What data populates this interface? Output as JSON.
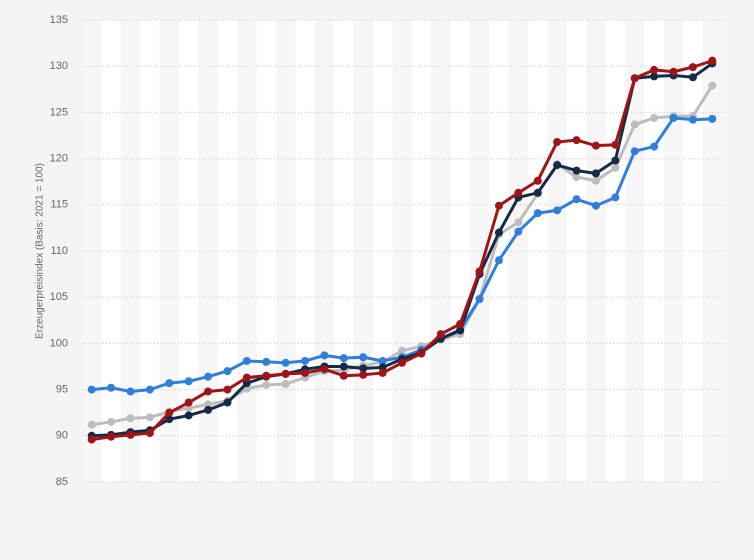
{
  "chart_data": {
    "type": "line",
    "y_label": "Erzeugerpreisindex (Basis: 2021 = 100)",
    "categories": [
      null,
      null,
      null,
      null,
      null,
      null,
      null,
      null,
      null,
      null,
      null,
      null,
      null,
      null,
      null,
      null,
      null,
      null,
      null,
      null,
      null,
      null,
      null,
      null,
      null,
      null,
      null,
      null,
      null,
      null,
      null,
      null,
      null
    ],
    "series": [
      {
        "color": "#bdbdbd",
        "values": [
          91.2,
          91.5,
          91.9,
          92.0,
          92.6,
          93.0,
          93.4,
          93.8,
          95.1,
          95.5,
          95.6,
          96.3,
          97.0,
          97.1,
          97.6,
          98.0,
          99.2,
          99.7,
          100.4,
          101.0,
          104.8,
          111.8,
          113.1,
          116.2,
          119.4,
          118.0,
          117.6,
          119.0,
          123.7,
          124.4,
          124.6,
          124.6,
          127.9
        ]
      },
      {
        "color": "#2f7ed8",
        "values": [
          95.0,
          95.2,
          94.8,
          95.0,
          95.7,
          95.9,
          96.4,
          97.0,
          98.1,
          98.0,
          97.9,
          98.1,
          98.7,
          98.4,
          98.5,
          98.1,
          98.5,
          99.3,
          100.5,
          101.5,
          104.8,
          109.0,
          112.1,
          114.1,
          114.4,
          115.6,
          114.9,
          115.8,
          120.8,
          121.3,
          124.4,
          124.2,
          124.3
        ]
      },
      {
        "color": "#152a45",
        "values": [
          90.0,
          90.1,
          90.4,
          90.6,
          91.8,
          92.2,
          92.8,
          93.6,
          95.7,
          96.4,
          96.7,
          97.2,
          97.5,
          97.5,
          97.3,
          97.4,
          98.3,
          99.0,
          100.5,
          101.4,
          107.5,
          112.0,
          115.8,
          116.3,
          119.3,
          118.7,
          118.4,
          119.8,
          128.7,
          128.9,
          129.0,
          128.8,
          130.3
        ]
      },
      {
        "color": "#a01418",
        "values": [
          89.6,
          89.9,
          90.1,
          90.3,
          92.5,
          93.6,
          94.8,
          95.0,
          96.3,
          96.5,
          96.7,
          96.8,
          97.2,
          96.5,
          96.6,
          96.8,
          97.9,
          98.9,
          101.0,
          102.1,
          107.8,
          114.9,
          116.3,
          117.6,
          121.8,
          122.0,
          121.4,
          121.5,
          128.7,
          129.6,
          129.4,
          129.9,
          130.6
        ]
      }
    ],
    "ylim": [
      85,
      135
    ],
    "yticks": [
      85,
      90,
      95,
      100,
      105,
      110,
      115,
      120,
      125,
      130,
      135
    ],
    "grid": true
  }
}
